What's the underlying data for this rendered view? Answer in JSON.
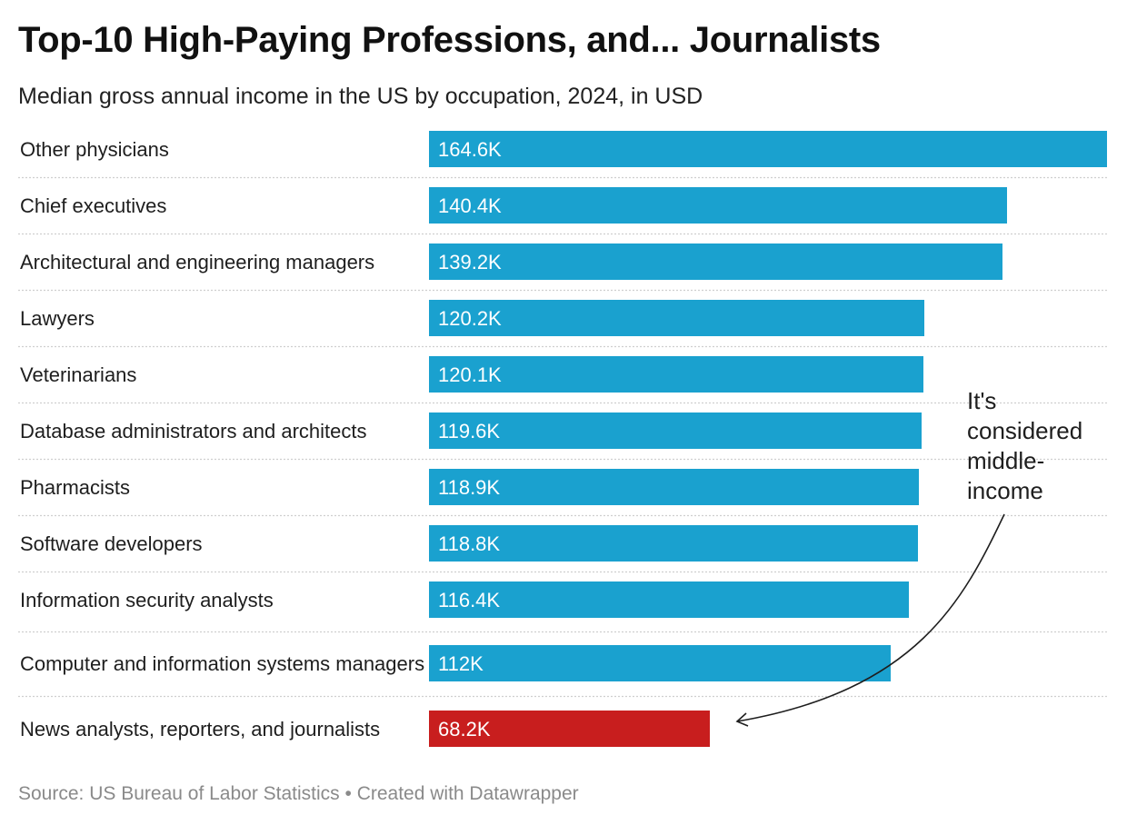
{
  "header": {
    "title": "Top-10 High-Paying Professions, and... Journalists",
    "subtitle": "Median gross annual income in the US by occupation, 2024, in USD"
  },
  "chart_data": {
    "type": "bar",
    "orientation": "horizontal",
    "title": "Top-10 High-Paying Professions, and... Journalists",
    "subtitle": "Median gross annual income in the US by occupation, 2024, in USD",
    "xlabel": "",
    "ylabel": "",
    "xlim": [
      0,
      164.6
    ],
    "unit": "thousand USD",
    "grid": false,
    "colors": {
      "default": "#1aa1cf",
      "highlight": "#c81e1e",
      "row_divider": "#cfcfcf",
      "label_text": "#ffffff"
    },
    "categories": [
      "Other physicians",
      "Chief executives",
      "Architectural and engineering managers",
      "Lawyers",
      "Veterinarians",
      "Database administrators and architects",
      "Pharmacists",
      "Software developers",
      "Information security analysts",
      "Computer and information systems managers",
      "News analysts, reporters, and journalists"
    ],
    "values": [
      164.6,
      140.4,
      139.2,
      120.2,
      120.1,
      119.6,
      118.9,
      118.8,
      116.4,
      112,
      68.2
    ],
    "value_labels": [
      "164.6K",
      "140.4K",
      "139.2K",
      "120.2K",
      "120.1K",
      "119.6K",
      "118.9K",
      "118.8K",
      "116.4K",
      "112K",
      "68.2K"
    ],
    "highlight_index": 10,
    "annotations": [
      {
        "lines": [
          "It's",
          "considered",
          "middle-",
          "income"
        ],
        "points_to": "News analysts, reporters, and journalists"
      }
    ]
  },
  "footer": {
    "source": "Source: US Bureau of Labor Statistics • Created with Datawrapper"
  }
}
